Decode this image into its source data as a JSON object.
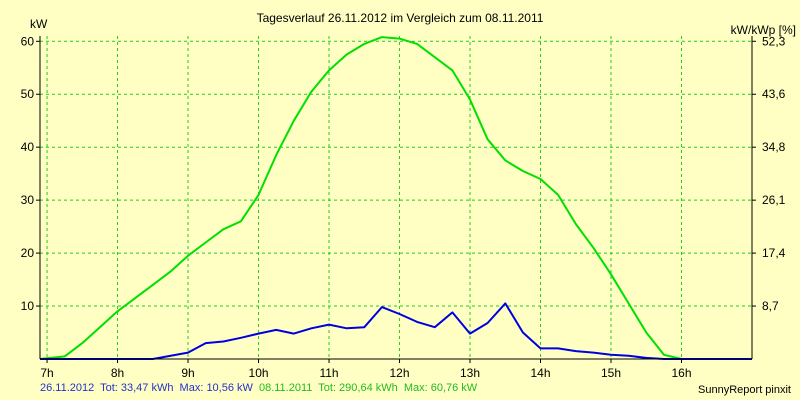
{
  "chart_data": {
    "type": "line",
    "title": "Tagesverlauf 26.11.2012 im Vergleich zum 08.11.2011",
    "ylabel_left": "kW",
    "ylabel_right": "kW/kWp [%]",
    "x_ticks": [
      "7h",
      "8h",
      "9h",
      "10h",
      "11h",
      "12h",
      "13h",
      "14h",
      "15h",
      "16h"
    ],
    "x_tick_values": [
      7,
      8,
      9,
      10,
      11,
      12,
      13,
      14,
      15,
      16
    ],
    "xlim": [
      6.9,
      17.0
    ],
    "ylim": [
      0,
      61
    ],
    "y_ticks": [
      10,
      20,
      30,
      40,
      50,
      60
    ],
    "y_ticks_right": [
      "8,7",
      "17,4",
      "26,1",
      "34,8",
      "43,6",
      "52,3"
    ],
    "grid": true,
    "colors": {
      "background": "#ffffc4",
      "grid": "#22cc22",
      "axis": "#000000"
    },
    "series": [
      {
        "color": "#00e000",
        "x": [
          6.9,
          7.25,
          7.5,
          7.75,
          8.0,
          8.25,
          8.5,
          8.75,
          9.0,
          9.25,
          9.5,
          9.75,
          10.0,
          10.25,
          10.5,
          10.75,
          11.0,
          11.25,
          11.5,
          11.75,
          12.0,
          12.25,
          12.5,
          12.75,
          13.0,
          13.25,
          13.5,
          13.75,
          14.0,
          14.25,
          14.5,
          14.75,
          15.0,
          15.25,
          15.5,
          15.75,
          16.0,
          16.25,
          16.5,
          16.75,
          17.0
        ],
        "values": [
          0,
          0.5,
          3,
          6,
          9,
          11.5,
          14,
          16.5,
          19.5,
          22,
          24.5,
          26,
          31,
          38.5,
          45,
          50.5,
          54.5,
          57.5,
          59.5,
          60.8,
          60.5,
          59.5,
          57,
          54.5,
          49,
          41.5,
          37.5,
          35.5,
          34,
          31,
          25.5,
          21,
          16,
          10.5,
          5,
          0.8,
          0,
          0,
          0,
          0,
          0
        ]
      },
      {
        "color": "#0000e0",
        "x": [
          6.9,
          8.0,
          8.5,
          9.0,
          9.25,
          9.5,
          9.75,
          10.0,
          10.25,
          10.5,
          10.75,
          11.0,
          11.25,
          11.5,
          11.75,
          12.0,
          12.25,
          12.5,
          12.75,
          13.0,
          13.25,
          13.5,
          13.75,
          14.0,
          14.25,
          14.5,
          14.75,
          15.0,
          15.25,
          15.5,
          15.75,
          16.0,
          16.25,
          16.5,
          17.0
        ],
        "values": [
          0,
          0,
          0,
          1.2,
          3,
          3.3,
          4,
          4.8,
          5.5,
          4.8,
          5.8,
          6.5,
          5.8,
          6,
          9.8,
          8.5,
          7,
          6,
          8.8,
          4.8,
          6.8,
          10.5,
          5,
          2,
          2,
          1.5,
          1.2,
          0.8,
          0.6,
          0.2,
          0,
          0,
          0,
          0,
          0
        ]
      }
    ]
  },
  "footer": {
    "series_2012": {
      "label": "26.11.2012",
      "tot": "Tot: 33,47 kWh",
      "max": "Max: 10,56 kW",
      "color": "#2233cc"
    },
    "series_2011": {
      "label": "08.11.2011",
      "tot": "Tot: 290,64 kWh",
      "max": "Max: 60,76 kW",
      "color": "#22bb22"
    },
    "credit": "SunnyReport pinxit"
  }
}
